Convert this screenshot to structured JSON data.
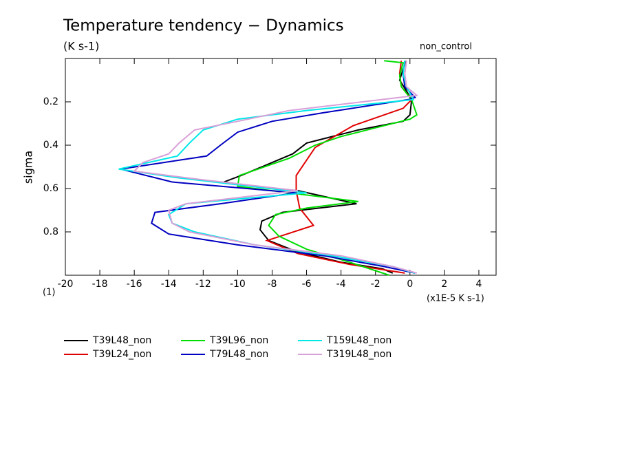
{
  "chart_data": {
    "type": "line",
    "title": "Temperature tendency − Dynamics",
    "subtitle": "(K s-1)",
    "annotation": "non_control",
    "y_label": "sigma",
    "x_label": "(x1E-5 K s-1)",
    "x_scale_label": "(1)",
    "xlim": [
      -20,
      5
    ],
    "ylim": [
      0,
      1
    ],
    "y_inverted": true,
    "xticks": [
      -20,
      -18,
      -16,
      -14,
      -12,
      -10,
      -8,
      -6,
      -4,
      -2,
      0,
      2,
      4
    ],
    "yticks": [
      0.2,
      0.4,
      0.6,
      0.8
    ],
    "series": [
      {
        "name": "T39L48_non",
        "color": "#000000",
        "x": [
          -0.2,
          -0.4,
          -0.6,
          -0.2,
          0.1,
          0,
          -0.4,
          -3,
          -4.5,
          -6,
          -6.8,
          -8,
          -9.8,
          -10.8,
          -9,
          -6.5,
          -3.1,
          -7.4,
          -8.6,
          -8.7,
          -8.2,
          -6.6,
          -4,
          -1.6,
          -1
        ],
        "y": [
          0.01,
          0.05,
          0.1,
          0.15,
          0.19,
          0.26,
          0.29,
          0.33,
          0.36,
          0.39,
          0.44,
          0.48,
          0.54,
          0.57,
          0.59,
          0.61,
          0.67,
          0.71,
          0.75,
          0.79,
          0.84,
          0.89,
          0.94,
          0.97,
          0.99
        ]
      },
      {
        "name": "T39L24_non",
        "color": "#e00000",
        "x": [
          -0.5,
          -0.6,
          -0.5,
          0.1,
          -0.4,
          -3.3,
          -5.5,
          -6.6,
          -6.6,
          -6.4,
          -5.6,
          -8.3,
          -6.5,
          -3.5,
          -0.3
        ],
        "y": [
          0.01,
          0.07,
          0.13,
          0.19,
          0.23,
          0.31,
          0.41,
          0.54,
          0.61,
          0.69,
          0.77,
          0.84,
          0.9,
          0.95,
          0.99
        ]
      },
      {
        "name": "T39L96_non",
        "color": "#00dd00",
        "x": [
          -1.5,
          -0.4,
          -0.6,
          -0.5,
          0.1,
          0.4,
          0,
          -2,
          -4,
          -5.5,
          -7,
          -9.9,
          -10,
          -8,
          -3,
          -6,
          -7.8,
          -8.2,
          -7.6,
          -6,
          -3.5,
          -1.2
        ],
        "y": [
          0.01,
          0.02,
          0.08,
          0.13,
          0.19,
          0.26,
          0.28,
          0.32,
          0.36,
          0.4,
          0.46,
          0.54,
          0.59,
          0.61,
          0.66,
          0.69,
          0.72,
          0.77,
          0.82,
          0.88,
          0.94,
          1.0
        ]
      },
      {
        "name": "T79L48_non",
        "color": "#0000c0",
        "x": [
          -0.3,
          -0.4,
          -0.3,
          0.3,
          -0.1,
          -5,
          -8,
          -10,
          -11,
          -11.8,
          -16.8,
          -13.8,
          -6.6,
          -11,
          -14.8,
          -15,
          -14,
          -10,
          -5,
          -1.5,
          0.3
        ],
        "y": [
          0.01,
          0.07,
          0.13,
          0.18,
          0.19,
          0.25,
          0.29,
          0.34,
          0.4,
          0.45,
          0.51,
          0.57,
          0.62,
          0.67,
          0.71,
          0.76,
          0.81,
          0.86,
          0.91,
          0.96,
          0.99
        ]
      },
      {
        "name": "T159L48_non",
        "color": "#00e8e8",
        "x": [
          -0.3,
          -0.4,
          -0.2,
          0.2,
          -6,
          -10,
          -12,
          -12.8,
          -13.5,
          -16.9,
          -13.5,
          -6,
          -13,
          -14,
          -13.8,
          -12.5,
          -9,
          -4.5,
          -1,
          0.3
        ],
        "y": [
          0.01,
          0.07,
          0.13,
          0.19,
          0.24,
          0.28,
          0.33,
          0.39,
          0.45,
          0.51,
          0.55,
          0.62,
          0.67,
          0.72,
          0.76,
          0.8,
          0.86,
          0.91,
          0.96,
          0.99
        ]
      },
      {
        "name": "T319L48_non",
        "color": "#d8a0d8",
        "x": [
          -0.2,
          -0.3,
          -0.2,
          0.4,
          -7,
          -10,
          -12.5,
          -13.4,
          -14,
          -15.5,
          -16,
          -12,
          -6.5,
          -13,
          -14,
          -13.8,
          -12.8,
          -9,
          -4,
          -1,
          0.4
        ],
        "y": [
          0.01,
          0.07,
          0.13,
          0.17,
          0.24,
          0.29,
          0.33,
          0.39,
          0.44,
          0.48,
          0.52,
          0.56,
          0.61,
          0.67,
          0.7,
          0.76,
          0.8,
          0.86,
          0.91,
          0.96,
          0.99
        ]
      }
    ]
  }
}
